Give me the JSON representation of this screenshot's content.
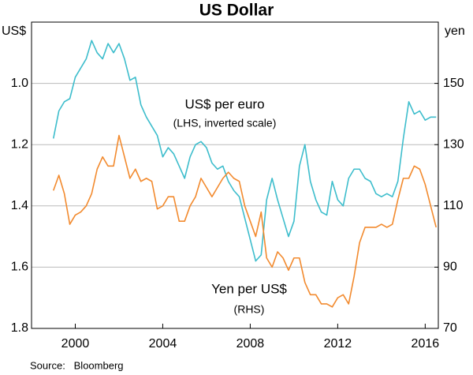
{
  "chart_data": {
    "type": "line",
    "title": "US Dollar",
    "y_unit": "US$",
    "y2_unit": "yen",
    "source": "Source:   Bloomberg",
    "annotations": [
      "(LHS, inverted scale)",
      "(RHS)"
    ],
    "x": [
      1999,
      1999.25,
      1999.5,
      1999.75,
      2000,
      2000.25,
      2000.5,
      2000.75,
      2001,
      2001.25,
      2001.5,
      2001.75,
      2002,
      2002.25,
      2002.5,
      2002.75,
      2003,
      2003.25,
      2003.5,
      2003.75,
      2004,
      2004.25,
      2004.5,
      2004.75,
      2005,
      2005.25,
      2005.5,
      2005.75,
      2006,
      2006.25,
      2006.5,
      2006.75,
      2007,
      2007.25,
      2007.5,
      2007.75,
      2008,
      2008.25,
      2008.5,
      2008.75,
      2009,
      2009.25,
      2009.5,
      2009.75,
      2010,
      2010.25,
      2010.5,
      2010.75,
      2011,
      2011.25,
      2011.5,
      2011.75,
      2012,
      2012.25,
      2012.5,
      2012.75,
      2013,
      2013.25,
      2013.5,
      2013.75,
      2014,
      2014.25,
      2014.5,
      2014.75,
      2015,
      2015.25,
      2015.5,
      2015.75,
      2016,
      2016.25,
      2016.5
    ],
    "series": [
      {
        "name": "US$ per euro",
        "color": "#3dbdcc",
        "axis": "y",
        "values": [
          1.18,
          1.09,
          1.06,
          1.05,
          0.98,
          0.95,
          0.92,
          0.86,
          0.9,
          0.92,
          0.87,
          0.9,
          0.87,
          0.92,
          0.99,
          0.98,
          1.07,
          1.11,
          1.14,
          1.17,
          1.24,
          1.21,
          1.23,
          1.27,
          1.31,
          1.24,
          1.2,
          1.19,
          1.21,
          1.26,
          1.28,
          1.27,
          1.32,
          1.35,
          1.37,
          1.44,
          1.51,
          1.58,
          1.56,
          1.38,
          1.31,
          1.38,
          1.44,
          1.5,
          1.45,
          1.27,
          1.2,
          1.32,
          1.38,
          1.42,
          1.43,
          1.32,
          1.38,
          1.4,
          1.31,
          1.28,
          1.28,
          1.31,
          1.32,
          1.36,
          1.37,
          1.36,
          1.37,
          1.32,
          1.18,
          1.06,
          1.1,
          1.09,
          1.12,
          1.11,
          1.11
        ]
      },
      {
        "name": "Yen per US$",
        "color": "#f28a2e",
        "axis": "y2",
        "values": [
          115,
          120,
          114,
          104,
          107,
          108,
          110,
          114,
          122,
          126,
          123,
          123,
          133,
          126,
          119,
          122,
          118,
          119,
          118,
          109,
          110,
          113,
          113,
          105,
          105,
          110,
          113,
          119,
          116,
          113,
          116,
          119,
          121,
          119,
          118,
          110,
          105,
          100,
          108,
          93,
          90,
          95,
          93,
          89,
          93,
          93,
          85,
          81,
          81,
          78,
          78,
          77,
          80,
          81,
          78,
          87,
          98,
          103,
          103,
          103,
          104,
          103,
          104,
          112,
          119,
          119,
          123,
          122,
          117,
          110,
          103
        ]
      }
    ],
    "xlim": [
      1998,
      2016.6
    ],
    "xticks": [
      2000,
      2004,
      2008,
      2012,
      2016
    ],
    "ylim": [
      0.8,
      1.8
    ],
    "y_inverted": true,
    "yticks": [
      {
        "value": 1,
        "label": "1.0"
      },
      {
        "value": 1.2,
        "label": "1.2"
      },
      {
        "value": 1.4,
        "label": "1.4"
      },
      {
        "value": 1.6,
        "label": "1.6"
      },
      {
        "value": 1.8,
        "label": "1.8"
      }
    ],
    "y2lim": [
      70,
      170
    ],
    "y2ticks": [
      70,
      90,
      110,
      130,
      150
    ],
    "grid": true
  }
}
